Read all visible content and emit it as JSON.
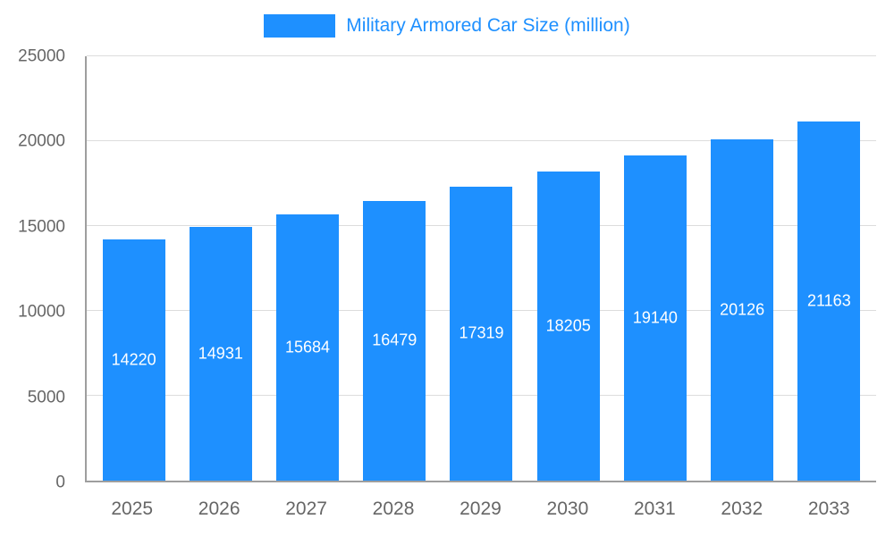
{
  "chart_data": {
    "type": "bar",
    "title": "Military Armored Car Size (million)",
    "categories": [
      "2025",
      "2026",
      "2027",
      "2028",
      "2029",
      "2030",
      "2031",
      "2032",
      "2033"
    ],
    "values": [
      14220,
      14931,
      15684,
      16479,
      17319,
      18205,
      19140,
      20126,
      21163
    ],
    "xlabel": "",
    "ylabel": "",
    "ylim": [
      0,
      25000
    ],
    "yticks": [
      0,
      5000,
      10000,
      15000,
      20000,
      25000
    ],
    "grid": "horizontal",
    "legend_position": "top-center",
    "bar_value_labels": "inside-middle",
    "colors": {
      "bar": "#1e90ff",
      "title": "#1e90ff",
      "axis_text": "#666666",
      "gridline": "#dcdcdc",
      "axis_line": "#9e9e9e",
      "bar_label": "#ffffff",
      "background": "#ffffff"
    }
  }
}
